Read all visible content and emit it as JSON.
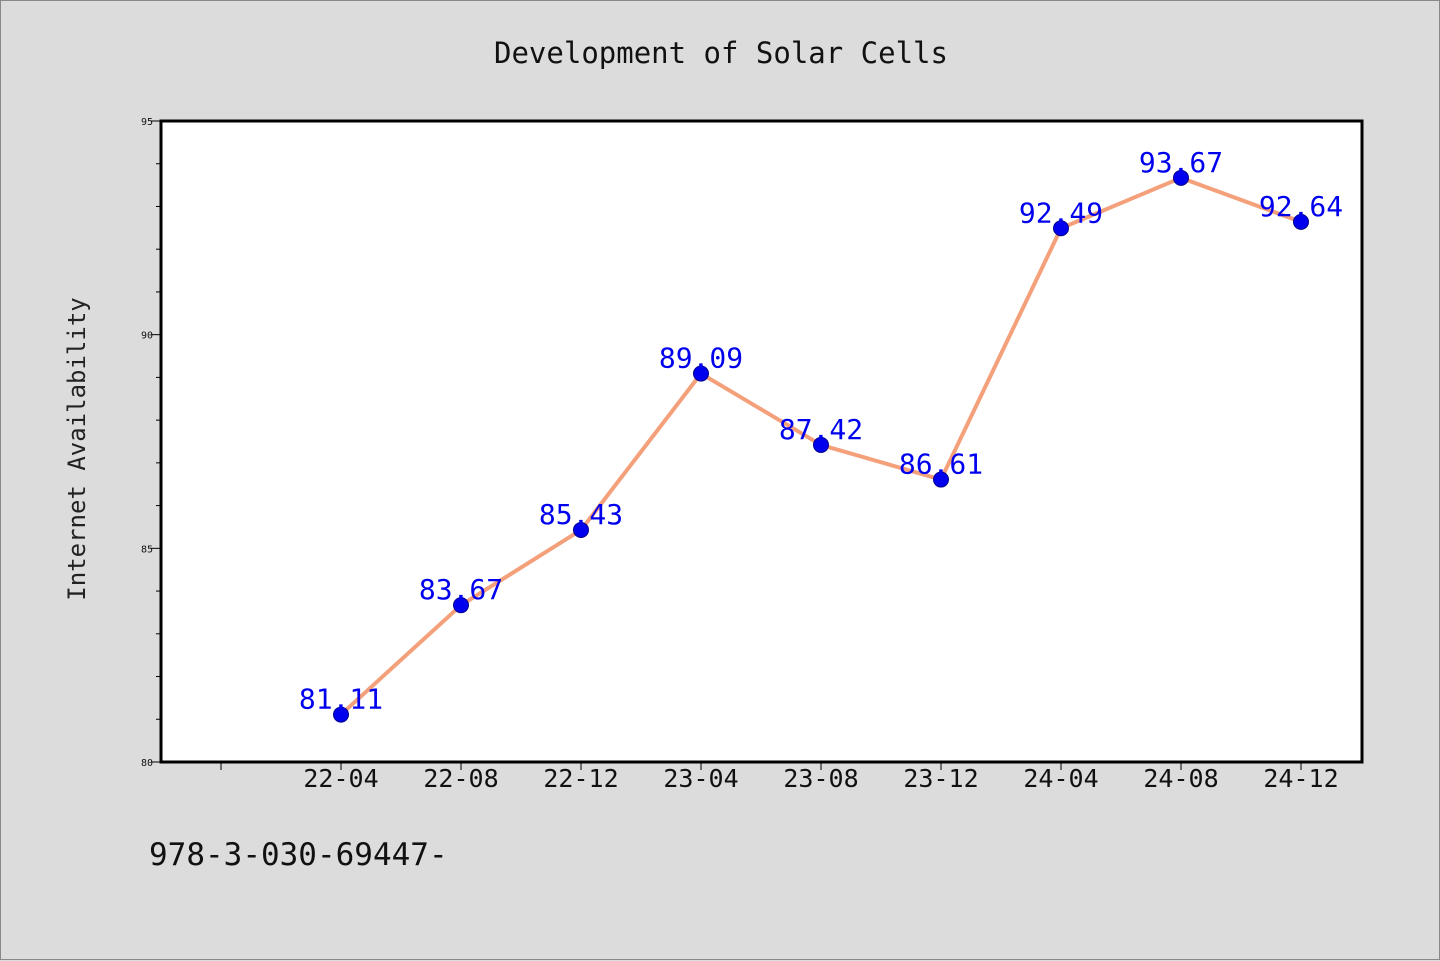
{
  "chart_data": {
    "type": "line",
    "title": "Development of Solar Cells",
    "xlabel": "",
    "ylabel": "Internet Availability",
    "categories": [
      "22-04",
      "22-08",
      "22-12",
      "23-04",
      "23-08",
      "23-12",
      "24-04",
      "24-08",
      "24-12"
    ],
    "series": [
      {
        "values": [
          81.11,
          83.67,
          85.43,
          89.09,
          87.42,
          86.61,
          92.49,
          93.67,
          92.64
        ],
        "labels": [
          "81.11",
          "83.67",
          "85.43",
          "89.09",
          "87.42",
          "86.61",
          "92.49",
          "93.67",
          "92.64"
        ],
        "line_color": "#f4a07a",
        "marker_color": "#0000ee",
        "label_color": "#0000ee"
      }
    ],
    "ylim": [
      80,
      95
    ],
    "y_major_ticks": [
      80,
      85,
      90,
      95
    ],
    "y_minor_step": 1,
    "grid": false,
    "legend": "none"
  },
  "footer": {
    "text": "978-3-030-69447-"
  }
}
